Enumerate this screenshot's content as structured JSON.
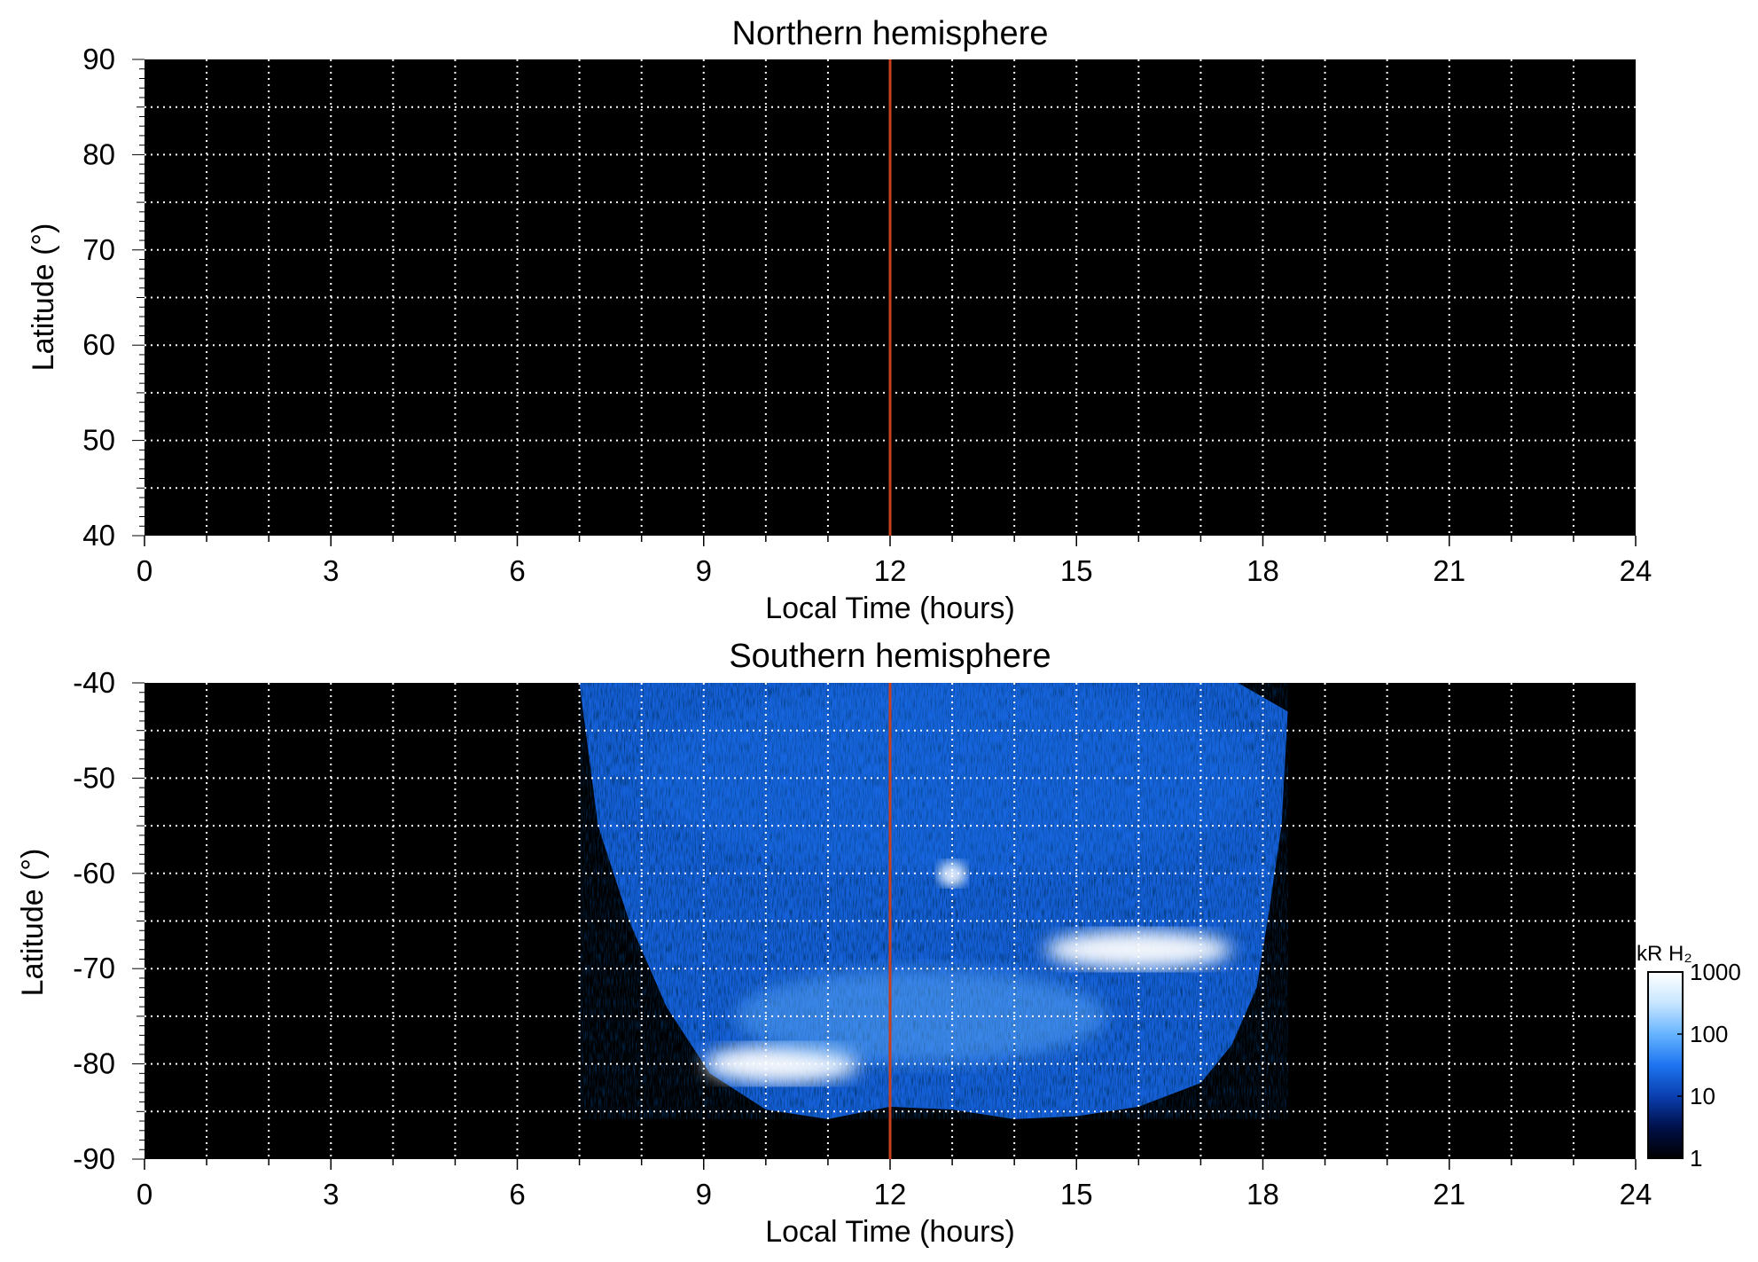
{
  "colors": {
    "background": "#000000",
    "grid": "#ffffff",
    "noon_line": "#c8401c",
    "colormap": [
      "#000000",
      "#00104a",
      "#0a3fb0",
      "#1e74f0",
      "#66b4ff",
      "#c8e6ff",
      "#ffffff"
    ]
  },
  "chart_data": [
    {
      "type": "heatmap",
      "title": "Northern hemisphere",
      "xlabel": "Local Time (hours)",
      "ylabel": "Latitude (°)",
      "xlim": [
        0,
        24
      ],
      "ylim": [
        40,
        90
      ],
      "xticks": [
        "0",
        "3",
        "6",
        "9",
        "12",
        "15",
        "18",
        "21",
        "24"
      ],
      "yticks": [
        "40",
        "50",
        "60",
        "70",
        "80",
        "90"
      ],
      "grid": "dotted, every 1 hour local time and 5° latitude",
      "noon_line_hours": 12,
      "coverage": "no emission data"
    },
    {
      "type": "heatmap",
      "title": "Southern hemisphere",
      "xlabel": "Local Time (hours)",
      "ylabel": "Latitude (°)",
      "xlim": [
        0,
        24
      ],
      "ylim": [
        -90,
        -40
      ],
      "xticks": [
        "0",
        "3",
        "6",
        "9",
        "12",
        "15",
        "18",
        "21",
        "24"
      ],
      "yticks": [
        "-90",
        "-80",
        "-70",
        "-60",
        "-50",
        "-40"
      ],
      "grid": "dotted, every 1 hour local time and 5° latitude",
      "noon_line_hours": 12,
      "coverage": {
        "lt_range_hours": [
          7.0,
          18.5
        ],
        "lat_range_deg": [
          -86,
          -40
        ],
        "boundary": [
          [
            7.0,
            -40
          ],
          [
            7.3,
            -55
          ],
          [
            7.8,
            -65
          ],
          [
            8.4,
            -74
          ],
          [
            9.1,
            -81
          ],
          [
            10.0,
            -84.8
          ],
          [
            11.0,
            -85.8
          ],
          [
            12.0,
            -84.5
          ],
          [
            13.0,
            -84.8
          ],
          [
            14.0,
            -85.8
          ],
          [
            15.0,
            -85.5
          ],
          [
            16.0,
            -84.5
          ],
          [
            17.0,
            -82
          ],
          [
            17.5,
            -78
          ],
          [
            17.9,
            -72
          ],
          [
            18.1,
            -64
          ],
          [
            18.3,
            -55
          ],
          [
            18.4,
            -43
          ],
          [
            17.6,
            -40
          ]
        ]
      },
      "features": [
        {
          "name": "dawn oval arc",
          "lt_hours": [
            9.0,
            11.5
          ],
          "lat_deg": [
            -82,
            -78
          ],
          "brightness_kR": 1000
        },
        {
          "name": "dusk oval patch",
          "lt_hours": [
            14.5,
            17.5
          ],
          "lat_deg": [
            -70,
            -66
          ],
          "brightness_kR": 1000
        },
        {
          "name": "bright spot",
          "lt_hours": 13.0,
          "lat_deg": -60,
          "brightness_kR": 1000
        },
        {
          "name": "polar cap",
          "lt_hours": [
            9.5,
            15.5
          ],
          "lat_deg": [
            -80,
            -70
          ],
          "brightness_kR": 100
        },
        {
          "name": "low-latitude background",
          "lt_hours": [
            8.0,
            18.0
          ],
          "lat_deg": [
            -60,
            -40
          ],
          "brightness_kR": 10
        }
      ],
      "colorbar": {
        "title": "kR H₂",
        "scale": "log",
        "range": [
          1,
          1000
        ],
        "ticks": [
          "1",
          "10",
          "100",
          "1000"
        ]
      }
    }
  ]
}
